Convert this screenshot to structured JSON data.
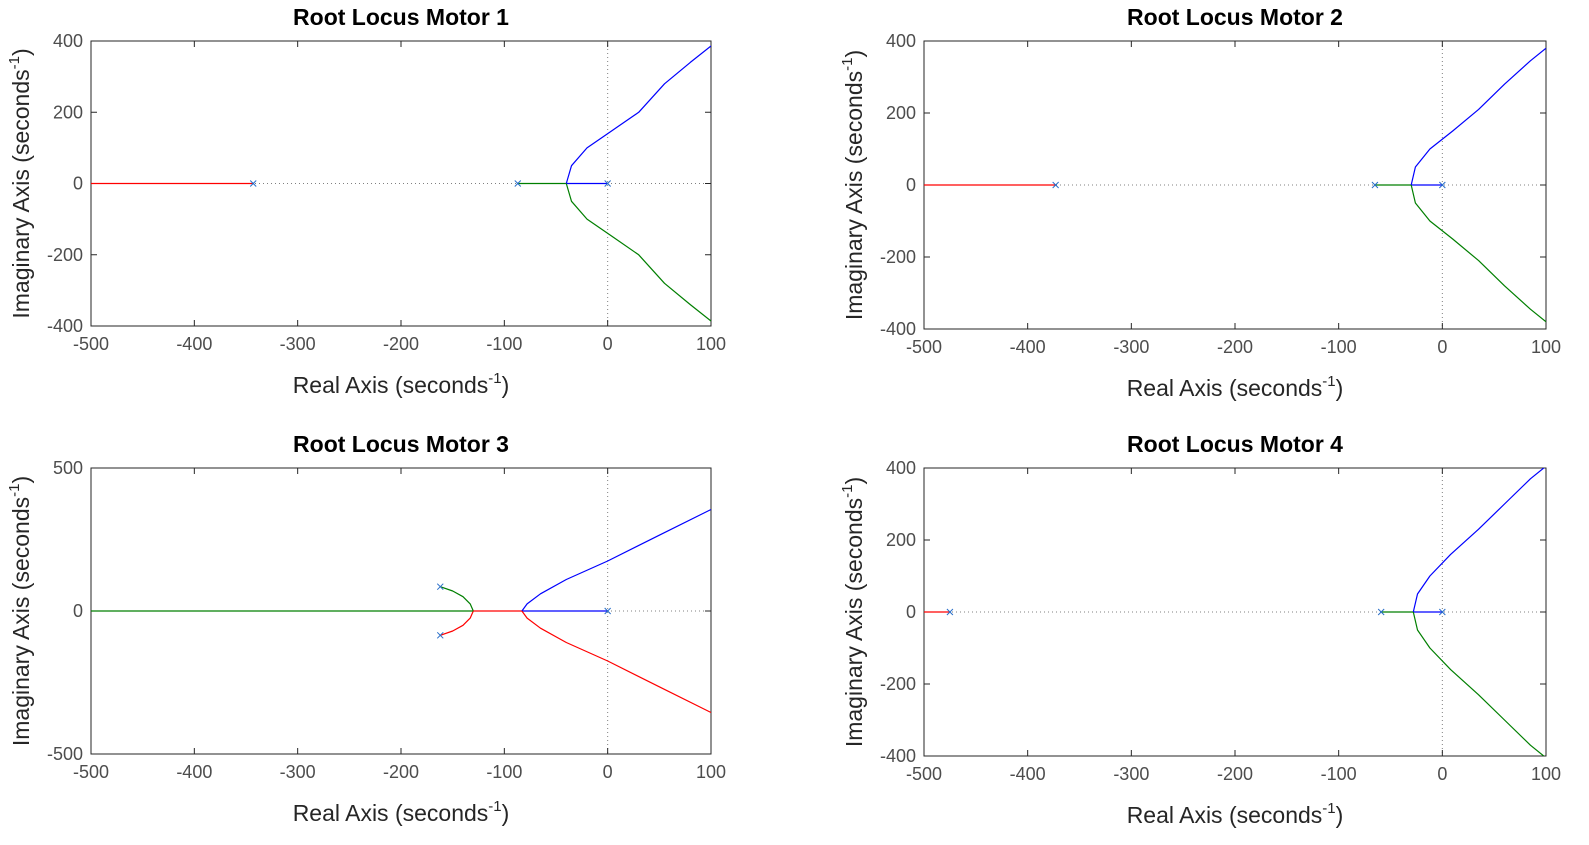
{
  "figure": {
    "colors": {
      "blue": "#0000ff",
      "green": "#007f00",
      "red": "#ff0000",
      "pole": "#2a6fc9",
      "axes_box": "#262626",
      "tick_label": "#4d4d4d",
      "reference_line": "#808080"
    }
  },
  "chart_data": [
    {
      "type": "line",
      "title": "Root Locus Motor 1",
      "xlabel": "Real Axis (seconds",
      "ylabel": "Imaginary Axis (seconds",
      "unit_superscript": "-1",
      "xlim": [
        -500,
        100
      ],
      "ylim": [
        -400,
        400
      ],
      "xticks": [
        -500,
        -400,
        -300,
        -200,
        -100,
        0,
        100
      ],
      "yticks": [
        -400,
        -200,
        0,
        200,
        400
      ],
      "grid": false,
      "poles": [
        [
          -343,
          0
        ],
        [
          -87,
          0
        ],
        [
          0,
          0
        ]
      ],
      "series": [
        {
          "color": "red",
          "points": [
            [
              -343,
              0
            ],
            [
              -500,
              0
            ]
          ]
        },
        {
          "color": "green",
          "points": [
            [
              -87,
              0
            ],
            [
              -40,
              0
            ]
          ]
        },
        {
          "color": "blue",
          "points": [
            [
              0,
              0
            ],
            [
              -40,
              0
            ]
          ]
        },
        {
          "color": "blue",
          "points": [
            [
              -40,
              0
            ],
            [
              -35,
              50
            ],
            [
              -20,
              100
            ],
            [
              5,
              150
            ],
            [
              30,
              200
            ],
            [
              55,
              280
            ],
            [
              80,
              340
            ],
            [
              100,
              386
            ]
          ]
        },
        {
          "color": "green",
          "points": [
            [
              -40,
              0
            ],
            [
              -35,
              -50
            ],
            [
              -20,
              -100
            ],
            [
              5,
              -150
            ],
            [
              30,
              -200
            ],
            [
              55,
              -280
            ],
            [
              80,
              -340
            ],
            [
              100,
              -386
            ]
          ]
        }
      ]
    },
    {
      "type": "line",
      "title": "Root Locus Motor 2",
      "xlabel": "Real Axis (seconds",
      "ylabel": "Imaginary Axis (seconds",
      "unit_superscript": "-1",
      "xlim": [
        -500,
        100
      ],
      "ylim": [
        -400,
        400
      ],
      "xticks": [
        -500,
        -400,
        -300,
        -200,
        -100,
        0,
        100
      ],
      "yticks": [
        -400,
        -200,
        0,
        200,
        400
      ],
      "grid": false,
      "poles": [
        [
          -373,
          0
        ],
        [
          -65,
          0
        ],
        [
          0,
          0
        ]
      ],
      "series": [
        {
          "color": "red",
          "points": [
            [
              -373,
              0
            ],
            [
              -500,
              0
            ]
          ]
        },
        {
          "color": "green",
          "points": [
            [
              -65,
              0
            ],
            [
              -30,
              0
            ]
          ]
        },
        {
          "color": "blue",
          "points": [
            [
              0,
              0
            ],
            [
              -30,
              0
            ]
          ]
        },
        {
          "color": "blue",
          "points": [
            [
              -30,
              0
            ],
            [
              -26,
              50
            ],
            [
              -12,
              100
            ],
            [
              10,
              150
            ],
            [
              35,
              210
            ],
            [
              60,
              280
            ],
            [
              85,
              345
            ],
            [
              100,
              380
            ]
          ]
        },
        {
          "color": "green",
          "points": [
            [
              -30,
              0
            ],
            [
              -26,
              -50
            ],
            [
              -12,
              -100
            ],
            [
              10,
              -150
            ],
            [
              35,
              -210
            ],
            [
              60,
              -280
            ],
            [
              85,
              -345
            ],
            [
              100,
              -380
            ]
          ]
        }
      ]
    },
    {
      "type": "line",
      "title": "Root Locus Motor 3",
      "xlabel": "Real Axis (seconds",
      "ylabel": "Imaginary Axis (seconds",
      "unit_superscript": "-1",
      "xlim": [
        -500,
        100
      ],
      "ylim": [
        -500,
        500
      ],
      "xticks": [
        -500,
        -400,
        -300,
        -200,
        -100,
        0,
        100
      ],
      "yticks": [
        -500,
        0,
        500
      ],
      "grid": false,
      "poles": [
        [
          -162,
          85
        ],
        [
          -162,
          -85
        ],
        [
          0,
          0
        ]
      ],
      "series": [
        {
          "color": "green",
          "points": [
            [
              -162,
              85
            ],
            [
              -150,
              70
            ],
            [
              -140,
              50
            ],
            [
              -133,
              25
            ],
            [
              -130,
              0
            ]
          ]
        },
        {
          "color": "red",
          "points": [
            [
              -162,
              -85
            ],
            [
              -150,
              -70
            ],
            [
              -140,
              -50
            ],
            [
              -133,
              -25
            ],
            [
              -130,
              0
            ]
          ]
        },
        {
          "color": "green",
          "points": [
            [
              -130,
              0
            ],
            [
              -500,
              0
            ]
          ]
        },
        {
          "color": "red",
          "points": [
            [
              -130,
              0
            ],
            [
              -83,
              0
            ]
          ]
        },
        {
          "color": "blue",
          "points": [
            [
              0,
              0
            ],
            [
              -83,
              0
            ]
          ]
        },
        {
          "color": "blue",
          "points": [
            [
              -83,
              0
            ],
            [
              -78,
              25
            ],
            [
              -65,
              60
            ],
            [
              -40,
              110
            ],
            [
              0,
              175
            ],
            [
              50,
              265
            ],
            [
              100,
              355
            ]
          ]
        },
        {
          "color": "red",
          "points": [
            [
              -83,
              0
            ],
            [
              -78,
              -25
            ],
            [
              -65,
              -60
            ],
            [
              -40,
              -110
            ],
            [
              0,
              -175
            ],
            [
              50,
              -265
            ],
            [
              100,
              -355
            ]
          ]
        }
      ]
    },
    {
      "type": "line",
      "title": "Root Locus Motor 4",
      "xlabel": "Real Axis (seconds",
      "ylabel": "Imaginary Axis (seconds",
      "unit_superscript": "-1",
      "xlim": [
        -500,
        100
      ],
      "ylim": [
        -400,
        400
      ],
      "xticks": [
        -500,
        -400,
        -300,
        -200,
        -100,
        0,
        100
      ],
      "yticks": [
        -400,
        -200,
        0,
        200,
        400
      ],
      "grid": false,
      "poles": [
        [
          -475,
          0
        ],
        [
          -59,
          0
        ],
        [
          0,
          0
        ]
      ],
      "series": [
        {
          "color": "red",
          "points": [
            [
              -475,
              0
            ],
            [
              -500,
              0
            ]
          ]
        },
        {
          "color": "green",
          "points": [
            [
              -59,
              0
            ],
            [
              -28,
              0
            ]
          ]
        },
        {
          "color": "blue",
          "points": [
            [
              0,
              0
            ],
            [
              -28,
              0
            ]
          ]
        },
        {
          "color": "blue",
          "points": [
            [
              -28,
              0
            ],
            [
              -24,
              50
            ],
            [
              -12,
              100
            ],
            [
              8,
              160
            ],
            [
              35,
              230
            ],
            [
              60,
              300
            ],
            [
              85,
              370
            ],
            [
              100,
              405
            ]
          ]
        },
        {
          "color": "green",
          "points": [
            [
              -28,
              0
            ],
            [
              -24,
              -50
            ],
            [
              -12,
              -100
            ],
            [
              8,
              -160
            ],
            [
              35,
              -230
            ],
            [
              60,
              -300
            ],
            [
              85,
              -370
            ],
            [
              100,
              -405
            ]
          ]
        }
      ]
    }
  ]
}
